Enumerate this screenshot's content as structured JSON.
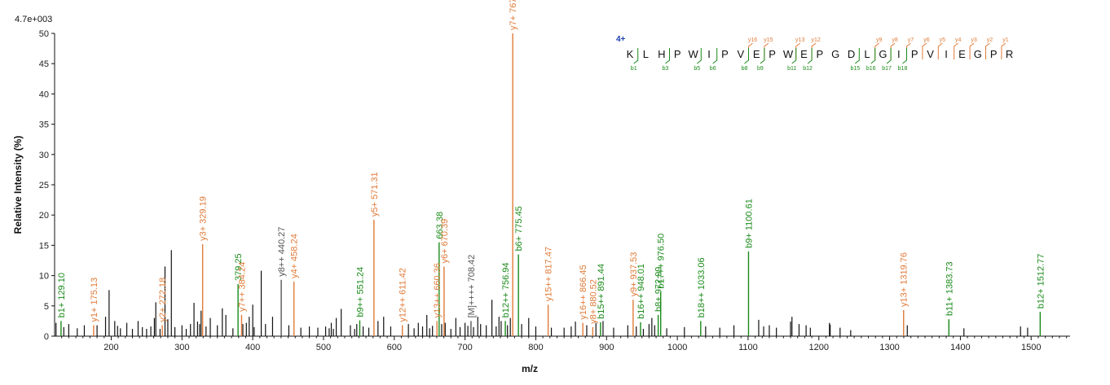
{
  "scale_label": "4.7e+003",
  "chart_data": {
    "type": "bar",
    "title": "",
    "xlabel": "m/z",
    "ylabel": "Relative   Intensity (%)",
    "xlim": [
      120,
      1555
    ],
    "ylim": [
      0,
      50
    ],
    "xticks": [
      200,
      300,
      400,
      500,
      600,
      700,
      800,
      900,
      1000,
      1100,
      1200,
      1300,
      1400,
      1500
    ],
    "yticks": [
      0,
      5,
      10,
      15,
      20,
      25,
      30,
      35,
      40,
      45,
      50
    ],
    "colors": {
      "y": "#e07b39",
      "b": "#1a8a1a",
      "other": "#555555",
      "noise": "#111111",
      "charge": "#1a3fb0"
    },
    "annotated_peaks": [
      {
        "mz": 129.1,
        "intensity": 2.5,
        "label": "b1+ 129.10",
        "type": "b"
      },
      {
        "mz": 175.13,
        "intensity": 1.8,
        "label": "y1+ 175.13",
        "type": "y"
      },
      {
        "mz": 272.18,
        "intensity": 1.8,
        "label": "y2+ 272.18",
        "type": "y"
      },
      {
        "mz": 329.19,
        "intensity": 15.2,
        "label": "y3+ 329.19",
        "type": "y"
      },
      {
        "mz": 379.25,
        "intensity": 8.6,
        "label": "379.25",
        "type": "b"
      },
      {
        "mz": 384.24,
        "intensity": 3.5,
        "label": "y7++ 384.24",
        "type": "y"
      },
      {
        "mz": 440.27,
        "intensity": 9.3,
        "label": "y8++ 440.27",
        "type": "other"
      },
      {
        "mz": 458.24,
        "intensity": 9.0,
        "label": "y4+ 458.24",
        "type": "y"
      },
      {
        "mz": 551.24,
        "intensity": 2.6,
        "label": "b9++ 551.24",
        "type": "b"
      },
      {
        "mz": 571.31,
        "intensity": 19.2,
        "label": "y5+ 571.31",
        "type": "y"
      },
      {
        "mz": 611.42,
        "intensity": 1.8,
        "label": "y12++ 611.42",
        "type": "y"
      },
      {
        "mz": 660.36,
        "intensity": 2.5,
        "label": "y13++ 660.36",
        "type": "y"
      },
      {
        "mz": 663.38,
        "intensity": 15.5,
        "label": "663.38",
        "type": "b"
      },
      {
        "mz": 670.39,
        "intensity": 11.5,
        "label": "y6+ 670.39",
        "type": "y"
      },
      {
        "mz": 708.42,
        "intensity": 2.5,
        "label": "[M]++++ 708.42",
        "type": "other"
      },
      {
        "mz": 756.94,
        "intensity": 2.5,
        "label": "b12++ 756.94",
        "type": "b"
      },
      {
        "mz": 767.4,
        "intensity": 50,
        "label": "y7+ 767.4",
        "type": "y"
      },
      {
        "mz": 775.45,
        "intensity": 13.5,
        "label": "b6+ 775.45",
        "type": "b"
      },
      {
        "mz": 817.47,
        "intensity": 5.2,
        "label": "y15++ 817.47",
        "type": "y"
      },
      {
        "mz": 866.45,
        "intensity": 2.2,
        "label": "y16++ 866.45",
        "type": "y"
      },
      {
        "mz": 880.52,
        "intensity": 1.5,
        "label": "y8+ 880.52",
        "type": "y"
      },
      {
        "mz": 891.44,
        "intensity": 2.3,
        "label": "b15++ 891.44",
        "type": "b"
      },
      {
        "mz": 937.53,
        "intensity": 6.0,
        "label": "y9+ 937.53",
        "type": "y"
      },
      {
        "mz": 948.01,
        "intensity": 2.3,
        "label": "b16++ 948.01",
        "type": "b"
      },
      {
        "mz": 972.99,
        "intensity": 3.5,
        "label": "b8+ 972.99",
        "type": "b"
      },
      {
        "mz": 976.5,
        "intensity": 7.3,
        "label": "b17++ 976.50",
        "type": "b"
      },
      {
        "mz": 1033.06,
        "intensity": 2.5,
        "label": "b18++ 1033.06",
        "type": "b"
      },
      {
        "mz": 1100.61,
        "intensity": 14.0,
        "label": "b9+ 1100.61",
        "type": "b"
      },
      {
        "mz": 1319.76,
        "intensity": 4.3,
        "label": "y13+ 1319.76",
        "type": "y"
      },
      {
        "mz": 1383.73,
        "intensity": 2.8,
        "label": "b11+ 1383.73",
        "type": "b"
      },
      {
        "mz": 1512.77,
        "intensity": 4.0,
        "label": "b12+ 1512.77",
        "type": "b"
      }
    ],
    "unlabeled_peaks": [
      [
        122,
        2.2
      ],
      [
        133,
        1.5
      ],
      [
        140,
        2
      ],
      [
        152,
        1.3
      ],
      [
        162,
        1.8
      ],
      [
        180,
        1.8
      ],
      [
        192,
        3.2
      ],
      [
        197,
        7.6
      ],
      [
        205,
        2.5
      ],
      [
        209,
        1.7
      ],
      [
        213,
        1.3
      ],
      [
        222,
        2.2
      ],
      [
        230,
        1.2
      ],
      [
        238,
        2.5
      ],
      [
        244,
        1.5
      ],
      [
        250,
        1.2
      ],
      [
        256,
        1.6
      ],
      [
        261,
        3.0
      ],
      [
        263,
        5.6
      ],
      [
        269,
        1.2
      ],
      [
        276,
        11.5
      ],
      [
        280,
        2.8
      ],
      [
        285,
        14.2
      ],
      [
        290,
        1.5
      ],
      [
        300,
        1.8
      ],
      [
        306,
        1.2
      ],
      [
        312,
        2.0
      ],
      [
        317,
        5.5
      ],
      [
        322,
        2.4
      ],
      [
        325,
        2.0
      ],
      [
        327,
        4.2
      ],
      [
        334,
        1.6
      ],
      [
        340,
        3.0
      ],
      [
        350,
        1.8
      ],
      [
        357,
        4.6
      ],
      [
        362,
        3.5
      ],
      [
        372,
        1.3
      ],
      [
        386,
        2.0
      ],
      [
        391,
        2.2
      ],
      [
        395,
        3.2
      ],
      [
        400,
        5.2
      ],
      [
        402,
        1.5
      ],
      [
        412,
        10.8
      ],
      [
        418,
        2.0
      ],
      [
        428,
        3.2
      ],
      [
        451,
        1.8
      ],
      [
        468,
        1.4
      ],
      [
        480,
        1.6
      ],
      [
        492,
        1.4
      ],
      [
        503,
        1.6
      ],
      [
        508,
        1.3
      ],
      [
        511,
        2.2
      ],
      [
        514,
        1.2
      ],
      [
        518,
        3.0
      ],
      [
        525,
        4.5
      ],
      [
        538,
        1.8
      ],
      [
        544,
        1.2
      ],
      [
        547,
        2.0
      ],
      [
        556,
        1.6
      ],
      [
        564,
        1.4
      ],
      [
        577,
        2.5
      ],
      [
        585,
        3.2
      ],
      [
        595,
        1.6
      ],
      [
        620,
        2.0
      ],
      [
        628,
        1.3
      ],
      [
        634,
        2.2
      ],
      [
        640,
        1.6
      ],
      [
        646,
        3.5
      ],
      [
        650,
        1.3
      ],
      [
        654,
        1.7
      ],
      [
        667,
        2.0
      ],
      [
        672,
        2.2
      ],
      [
        680,
        1.2
      ],
      [
        687,
        3.0
      ],
      [
        693,
        1.5
      ],
      [
        700,
        2.2
      ],
      [
        704,
        1.7
      ],
      [
        712,
        1.5
      ],
      [
        718,
        3.2
      ],
      [
        722,
        2.0
      ],
      [
        730,
        1.8
      ],
      [
        738,
        6.0
      ],
      [
        744,
        1.6
      ],
      [
        748,
        3.2
      ],
      [
        751,
        2.5
      ],
      [
        760,
        1.8
      ],
      [
        764,
        3.0
      ],
      [
        780,
        2.0
      ],
      [
        790,
        3.0
      ],
      [
        800,
        1.6
      ],
      [
        822,
        1.4
      ],
      [
        840,
        1.4
      ],
      [
        850,
        1.6
      ],
      [
        856,
        2.4
      ],
      [
        872,
        1.8
      ],
      [
        885,
        2.2
      ],
      [
        895,
        2.5
      ],
      [
        910,
        1.4
      ],
      [
        930,
        1.8
      ],
      [
        942,
        1.6
      ],
      [
        952,
        1.2
      ],
      [
        960,
        2.0
      ],
      [
        964,
        3.0
      ],
      [
        968,
        1.8
      ],
      [
        985,
        1.3
      ],
      [
        1010,
        1.5
      ],
      [
        1040,
        1.6
      ],
      [
        1060,
        1.4
      ],
      [
        1080,
        1.8
      ],
      [
        1115,
        2.7
      ],
      [
        1122,
        1.6
      ],
      [
        1130,
        1.8
      ],
      [
        1140,
        1.4
      ],
      [
        1160,
        2.4
      ],
      [
        1162,
        3.2
      ],
      [
        1172,
        2.0
      ],
      [
        1182,
        1.8
      ],
      [
        1188,
        1.4
      ],
      [
        1215,
        2.2
      ],
      [
        1216,
        1.9
      ],
      [
        1230,
        1.4
      ],
      [
        1245,
        1.0
      ],
      [
        1325,
        1.8
      ],
      [
        1405,
        1.3
      ],
      [
        1485,
        1.6
      ],
      [
        1495,
        1.4
      ]
    ],
    "sequence": {
      "charge": "4+",
      "residues": [
        "K",
        "L",
        "H",
        "P",
        "W",
        "I",
        "P",
        "V",
        "E",
        "P",
        "W",
        "E",
        "P",
        "G",
        "D",
        "L",
        "G",
        "I",
        "P",
        "V",
        "I",
        "E",
        "G",
        "P",
        "R"
      ],
      "y_ions": [
        {
          "after": 8,
          "label": "y16"
        },
        {
          "after": 9,
          "label": "y15"
        },
        {
          "after": 11,
          "label": "y13"
        },
        {
          "after": 12,
          "label": "y12"
        },
        {
          "after": 16,
          "label": "y9"
        },
        {
          "after": 17,
          "label": "y8"
        },
        {
          "after": 18,
          "label": "y7"
        },
        {
          "after": 19,
          "label": "y6"
        },
        {
          "after": 20,
          "label": "y5"
        },
        {
          "after": 21,
          "label": "y4"
        },
        {
          "after": 22,
          "label": "y3"
        },
        {
          "after": 23,
          "label": "y2"
        },
        {
          "after": 24,
          "label": "y1"
        }
      ],
      "b_ions": [
        {
          "after": 1,
          "label": "b1"
        },
        {
          "after": 3,
          "label": "b3"
        },
        {
          "after": 5,
          "label": "b5"
        },
        {
          "after": 6,
          "label": "b6"
        },
        {
          "after": 8,
          "label": "b8"
        },
        {
          "after": 9,
          "label": "b9"
        },
        {
          "after": 11,
          "label": "b11"
        },
        {
          "after": 12,
          "label": "b12"
        },
        {
          "after": 15,
          "label": "b15"
        },
        {
          "after": 16,
          "label": "b16"
        },
        {
          "after": 17,
          "label": "b17"
        },
        {
          "after": 18,
          "label": "b18"
        }
      ]
    }
  }
}
